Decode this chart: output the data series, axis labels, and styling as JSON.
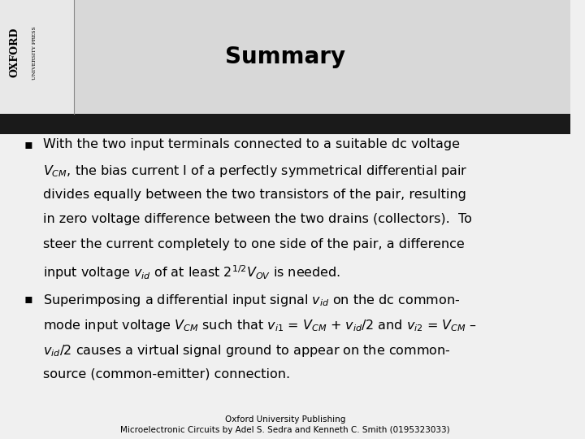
{
  "title": "Summary",
  "bg_color": "#f0f0f0",
  "header_bg": "#d8d8d8",
  "black_bar_color": "#1a1a1a",
  "title_color": "#000000",
  "title_fontsize": 20,
  "body_fontsize": 11.5,
  "footer_fontsize": 7.5,
  "bullet1_lines": [
    "With the two input terminals connected to a suitable dc voltage",
    "$V_{CM}$, the bias current I of a perfectly symmetrical differential pair",
    "divides equally between the two transistors of the pair, resulting",
    "in zero voltage difference between the two drains (collectors).  To",
    "steer the current completely to one side of the pair, a difference",
    "input voltage $v_{id}$ of at least $2^{1/2}V_{OV}$ is needed."
  ],
  "bullet2_lines": [
    "Superimposing a differential input signal $v_{id}$ on the dc common-",
    "mode input voltage $V_{CM}$ such that $v_{i1}$ = $V_{CM}$ + $v_{id}$/2 and $v_{i2}$ = $V_{CM}$ –",
    "$v_{id}$/2 causes a virtual signal ground to appear on the common-",
    "source (common-emitter) connection."
  ],
  "footer_line1": "Oxford University Publishing",
  "footer_line2": "Microelectronic Circuits by Adel S. Sedra and Kenneth C. Smith (0195323033)"
}
